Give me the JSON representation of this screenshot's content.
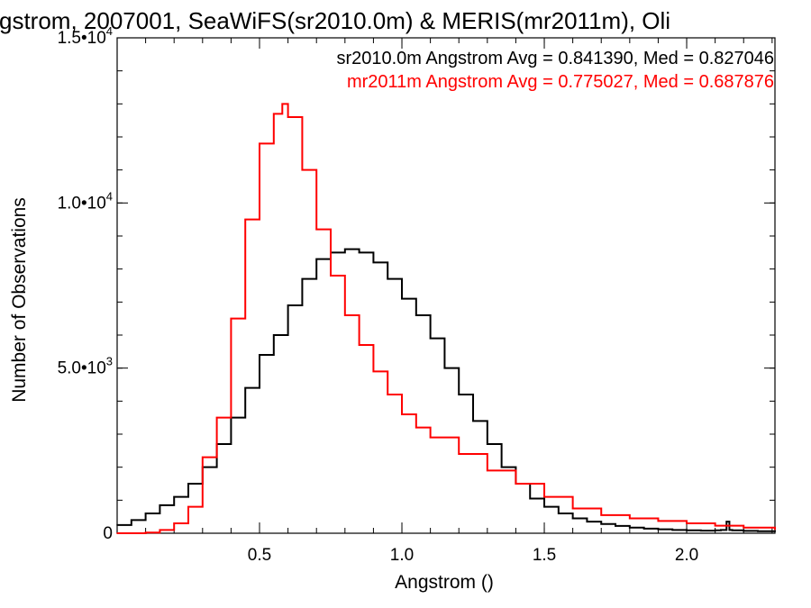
{
  "chart_data": {
    "type": "line",
    "title": "gstrom, 2007001, SeaWiFS(sr2010.0m) & MERIS(mr2011m), Oli",
    "xlabel": "Angstrom ()",
    "ylabel": "Number of Observations",
    "xlim": [
      0.0,
      2.31
    ],
    "ylim": [
      0,
      15000
    ],
    "x_ticks": [
      0.5,
      1.0,
      1.5,
      2.0
    ],
    "x_tick_labels": [
      "0.5",
      "1.0",
      "1.5",
      "2.0"
    ],
    "y_ticks": [
      {
        "value": 0,
        "mantissa": "0",
        "exponent": ""
      },
      {
        "value": 5000,
        "mantissa": "5.0•10",
        "exponent": "3"
      },
      {
        "value": 10000,
        "mantissa": "1.0•10",
        "exponent": "4"
      },
      {
        "value": 15000,
        "mantissa": "1.5•10",
        "exponent": "4"
      }
    ],
    "x_minor_step": 0.1,
    "y_minor_step": 1000,
    "grid": false,
    "legend_placement": "top-right",
    "annotations": [
      {
        "text": "sr2010.0m Angstrom Avg = 0.841390, Med = 0.827046",
        "color": "#000000"
      },
      {
        "text": "mr2011m Angstrom Avg = 0.775027, Med = 0.687876",
        "color": "#ff0000"
      }
    ],
    "series": [
      {
        "name": "sr2010.0m",
        "color": "#000000",
        "x": [
          0.0,
          0.05,
          0.1,
          0.15,
          0.2,
          0.25,
          0.3,
          0.35,
          0.4,
          0.45,
          0.5,
          0.55,
          0.6,
          0.65,
          0.7,
          0.75,
          0.8,
          0.85,
          0.9,
          0.95,
          1.0,
          1.05,
          1.1,
          1.15,
          1.2,
          1.25,
          1.3,
          1.35,
          1.4,
          1.45,
          1.5,
          1.55,
          1.6,
          1.65,
          1.7,
          1.75,
          1.8,
          1.85,
          1.9,
          1.95,
          2.0,
          2.05,
          2.1,
          2.12,
          2.14,
          2.15,
          2.16,
          2.2,
          2.25,
          2.31
        ],
        "y": [
          250,
          400,
          600,
          850,
          1100,
          1500,
          2000,
          2700,
          3500,
          4400,
          5400,
          6000,
          6900,
          7700,
          8300,
          8500,
          8600,
          8500,
          8200,
          7700,
          7100,
          6600,
          5900,
          5000,
          4200,
          3400,
          2700,
          2000,
          1500,
          1050,
          800,
          600,
          450,
          350,
          280,
          220,
          170,
          140,
          120,
          100,
          90,
          80,
          90,
          100,
          350,
          100,
          90,
          70,
          60,
          50
        ]
      },
      {
        "name": "mr2011m",
        "color": "#ff0000",
        "x": [
          0.0,
          0.1,
          0.15,
          0.2,
          0.25,
          0.3,
          0.35,
          0.4,
          0.45,
          0.5,
          0.55,
          0.58,
          0.6,
          0.65,
          0.7,
          0.75,
          0.8,
          0.85,
          0.9,
          0.95,
          1.0,
          1.05,
          1.1,
          1.2,
          1.3,
          1.4,
          1.5,
          1.6,
          1.7,
          1.8,
          1.9,
          2.0,
          2.1,
          2.2,
          2.31
        ],
        "y": [
          0,
          20,
          100,
          300,
          800,
          2300,
          3500,
          6500,
          9500,
          11800,
          12700,
          13000,
          12600,
          11000,
          9200,
          7800,
          6600,
          5700,
          4900,
          4200,
          3600,
          3200,
          2900,
          2400,
          1900,
          1500,
          1100,
          750,
          550,
          450,
          370,
          300,
          230,
          170,
          120
        ]
      }
    ]
  }
}
